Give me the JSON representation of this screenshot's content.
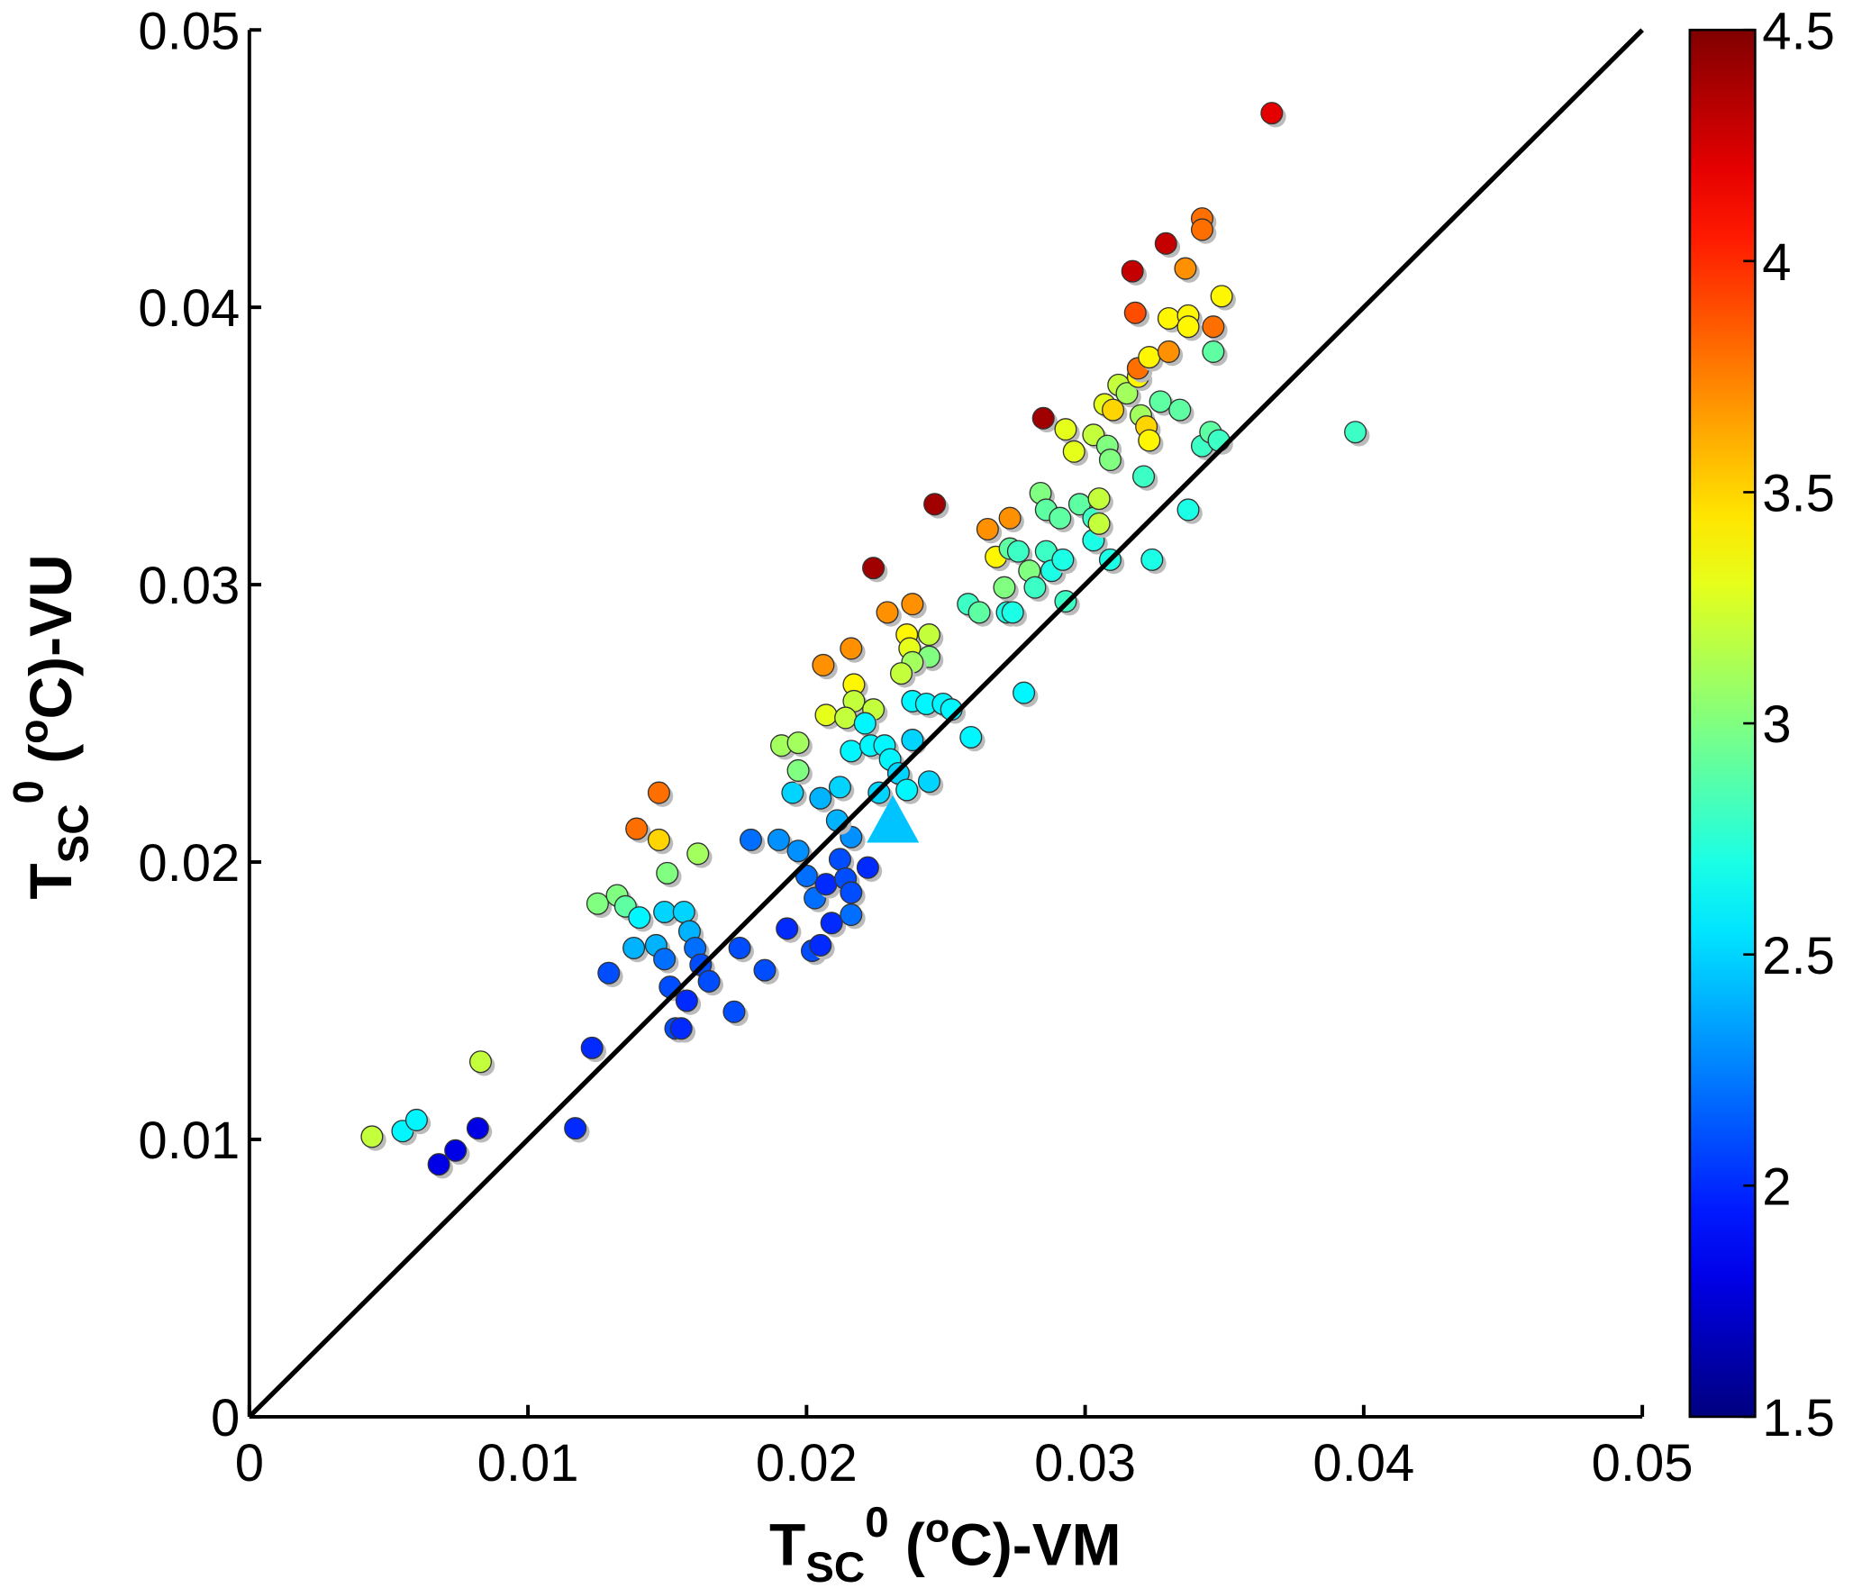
{
  "chart_data": {
    "type": "scatter",
    "xlim": [
      0,
      0.05
    ],
    "ylim": [
      0,
      0.05
    ],
    "xticks": [
      "0",
      "0.01",
      "0.02",
      "0.03",
      "0.04",
      "0.05"
    ],
    "yticks": [
      "0",
      "0.01",
      "0.02",
      "0.03",
      "0.04",
      "0.05"
    ],
    "xtick_values": [
      0,
      0.01,
      0.02,
      0.03,
      0.04,
      0.05
    ],
    "ytick_values": [
      0,
      0.01,
      0.02,
      0.03,
      0.04,
      0.05
    ],
    "xlabel": {
      "base": "T",
      "sub": "SC",
      "sup": "0",
      "mid": " (",
      "sup2": "o",
      "tail": "C)-VM"
    },
    "ylabel": {
      "base": "T",
      "sub": "SC",
      "sup": "0",
      "mid": " (",
      "sup2": "o",
      "tail": "C)-VU"
    },
    "reference_line": {
      "x": [
        0,
        0.05
      ],
      "y": [
        0,
        0.05
      ],
      "color": "#000000"
    },
    "colorbar": {
      "range": [
        1.5,
        4.5
      ],
      "ticks": [
        "1.5",
        "2",
        "2.5",
        "3",
        "3.5",
        "4",
        "4.5"
      ],
      "tick_values": [
        1.5,
        2,
        2.5,
        3,
        3.5,
        4,
        4.5
      ],
      "colormap": "jet",
      "placement": "right"
    },
    "grid": false,
    "points": [
      [
        0.0044,
        0.0101,
        3.2
      ],
      [
        0.0055,
        0.0103,
        2.6
      ],
      [
        0.006,
        0.0107,
        2.6
      ],
      [
        0.0068,
        0.0091,
        1.8
      ],
      [
        0.0074,
        0.0096,
        1.8
      ],
      [
        0.0082,
        0.0104,
        1.8
      ],
      [
        0.0083,
        0.0128,
        3.2
      ],
      [
        0.0117,
        0.0104,
        2.0
      ],
      [
        0.0123,
        0.0133,
        2.0
      ],
      [
        0.0129,
        0.016,
        2.1
      ],
      [
        0.0125,
        0.0185,
        3.0
      ],
      [
        0.0132,
        0.0188,
        3.0
      ],
      [
        0.0135,
        0.0184,
        2.9
      ],
      [
        0.014,
        0.018,
        2.6
      ],
      [
        0.0138,
        0.0169,
        2.4
      ],
      [
        0.0139,
        0.0212,
        3.8
      ],
      [
        0.0147,
        0.0225,
        3.8
      ],
      [
        0.0147,
        0.0208,
        3.5
      ],
      [
        0.015,
        0.0196,
        3.0
      ],
      [
        0.0161,
        0.0203,
        3.1
      ],
      [
        0.0149,
        0.0182,
        2.5
      ],
      [
        0.0156,
        0.0182,
        2.5
      ],
      [
        0.0146,
        0.017,
        2.4
      ],
      [
        0.0149,
        0.0165,
        2.2
      ],
      [
        0.0158,
        0.0175,
        2.4
      ],
      [
        0.016,
        0.0169,
        2.2
      ],
      [
        0.0162,
        0.0163,
        2.1
      ],
      [
        0.0151,
        0.0155,
        2.1
      ],
      [
        0.0157,
        0.015,
        2.0
      ],
      [
        0.0153,
        0.014,
        2.1
      ],
      [
        0.0155,
        0.014,
        2.0
      ],
      [
        0.0165,
        0.0157,
        2.1
      ],
      [
        0.0174,
        0.0146,
        2.1
      ],
      [
        0.0176,
        0.0169,
        2.1
      ],
      [
        0.0185,
        0.0161,
        2.1
      ],
      [
        0.018,
        0.0208,
        2.2
      ],
      [
        0.0193,
        0.0176,
        2.0
      ],
      [
        0.019,
        0.0208,
        2.3
      ],
      [
        0.0197,
        0.0204,
        2.3
      ],
      [
        0.02,
        0.0195,
        2.2
      ],
      [
        0.0202,
        0.0168,
        2.1
      ],
      [
        0.0205,
        0.017,
        2.0
      ],
      [
        0.0203,
        0.0187,
        2.2
      ],
      [
        0.0207,
        0.0192,
        2.0
      ],
      [
        0.0209,
        0.0178,
        2.0
      ],
      [
        0.0212,
        0.0201,
        2.1
      ],
      [
        0.0214,
        0.0194,
        2.1
      ],
      [
        0.0216,
        0.0189,
        2.1
      ],
      [
        0.0216,
        0.0181,
        2.2
      ],
      [
        0.0222,
        0.0198,
        2.0
      ],
      [
        0.0216,
        0.0209,
        2.3
      ],
      [
        0.0211,
        0.0215,
        2.4
      ],
      [
        0.0205,
        0.0223,
        2.4
      ],
      [
        0.0212,
        0.0227,
        2.5
      ],
      [
        0.0195,
        0.0225,
        2.5
      ],
      [
        0.0197,
        0.0233,
        3.0
      ],
      [
        0.0191,
        0.0242,
        3.1
      ],
      [
        0.0197,
        0.0243,
        3.1
      ],
      [
        0.0207,
        0.0253,
        3.3
      ],
      [
        0.0206,
        0.0271,
        3.7
      ],
      [
        0.0216,
        0.0277,
        3.7
      ],
      [
        0.0217,
        0.0264,
        3.4
      ],
      [
        0.0217,
        0.0258,
        3.2
      ],
      [
        0.0214,
        0.0252,
        3.2
      ],
      [
        0.0224,
        0.0255,
        3.2
      ],
      [
        0.0216,
        0.024,
        2.6
      ],
      [
        0.0221,
        0.025,
        2.6
      ],
      [
        0.0223,
        0.0242,
        2.6
      ],
      [
        0.0228,
        0.0242,
        2.6
      ],
      [
        0.023,
        0.0237,
        2.6
      ],
      [
        0.0233,
        0.0232,
        2.5
      ],
      [
        0.0238,
        0.0244,
        2.5
      ],
      [
        0.0236,
        0.0226,
        2.6
      ],
      [
        0.0244,
        0.0229,
        2.5
      ],
      [
        0.0226,
        0.0225,
        2.5
      ],
      [
        0.0224,
        0.0306,
        4.4
      ],
      [
        0.0229,
        0.029,
        3.7
      ],
      [
        0.0238,
        0.0293,
        3.7
      ],
      [
        0.0236,
        0.0282,
        3.4
      ],
      [
        0.0237,
        0.0277,
        3.3
      ],
      [
        0.0244,
        0.0282,
        3.2
      ],
      [
        0.0244,
        0.0274,
        3.0
      ],
      [
        0.0238,
        0.0272,
        3.1
      ],
      [
        0.0234,
        0.0268,
        3.2
      ],
      [
        0.0238,
        0.0258,
        2.6
      ],
      [
        0.0243,
        0.0257,
        2.6
      ],
      [
        0.0249,
        0.0257,
        2.6
      ],
      [
        0.0252,
        0.0255,
        2.6
      ],
      [
        0.0259,
        0.0245,
        2.6
      ],
      [
        0.0278,
        0.0261,
        2.6
      ],
      [
        0.0246,
        0.0329,
        4.4
      ],
      [
        0.0258,
        0.0293,
        2.8
      ],
      [
        0.0262,
        0.029,
        2.9
      ],
      [
        0.0265,
        0.032,
        3.7
      ],
      [
        0.0273,
        0.0324,
        3.7
      ],
      [
        0.0268,
        0.031,
        3.4
      ],
      [
        0.0271,
        0.0299,
        3.0
      ],
      [
        0.0272,
        0.029,
        2.7
      ],
      [
        0.0274,
        0.029,
        2.7
      ],
      [
        0.0273,
        0.0313,
        2.9
      ],
      [
        0.0276,
        0.0312,
        2.8
      ],
      [
        0.028,
        0.0305,
        3.0
      ],
      [
        0.0282,
        0.0299,
        2.8
      ],
      [
        0.0286,
        0.0312,
        2.8
      ],
      [
        0.0288,
        0.0305,
        2.7
      ],
      [
        0.0284,
        0.0333,
        3.0
      ],
      [
        0.0286,
        0.0327,
        2.9
      ],
      [
        0.0291,
        0.0324,
        2.9
      ],
      [
        0.0293,
        0.0294,
        2.8
      ],
      [
        0.0292,
        0.0309,
        2.7
      ],
      [
        0.0285,
        0.036,
        4.4
      ],
      [
        0.0293,
        0.0356,
        3.3
      ],
      [
        0.0296,
        0.0348,
        3.3
      ],
      [
        0.0298,
        0.0329,
        2.9
      ],
      [
        0.0303,
        0.0324,
        2.8
      ],
      [
        0.0303,
        0.0316,
        2.7
      ],
      [
        0.0305,
        0.0331,
        3.2
      ],
      [
        0.0305,
        0.0322,
        3.2
      ],
      [
        0.0309,
        0.0309,
        2.7
      ],
      [
        0.0303,
        0.0354,
        3.2
      ],
      [
        0.0307,
        0.0365,
        3.3
      ],
      [
        0.031,
        0.0363,
        3.5
      ],
      [
        0.0308,
        0.035,
        3.0
      ],
      [
        0.0309,
        0.0345,
        3.0
      ],
      [
        0.0312,
        0.0372,
        3.2
      ],
      [
        0.0315,
        0.0369,
        3.1
      ],
      [
        0.0319,
        0.0375,
        3.4
      ],
      [
        0.032,
        0.0361,
        3.1
      ],
      [
        0.0321,
        0.0339,
        2.8
      ],
      [
        0.0322,
        0.0357,
        3.5
      ],
      [
        0.0323,
        0.0352,
        3.4
      ],
      [
        0.0319,
        0.0378,
        3.8
      ],
      [
        0.0323,
        0.0382,
        3.4
      ],
      [
        0.0324,
        0.0309,
        2.7
      ],
      [
        0.0327,
        0.0366,
        2.9
      ],
      [
        0.033,
        0.0384,
        3.7
      ],
      [
        0.0334,
        0.0363,
        2.9
      ],
      [
        0.0337,
        0.0327,
        2.7
      ],
      [
        0.0342,
        0.035,
        2.8
      ],
      [
        0.0345,
        0.0355,
        2.9
      ],
      [
        0.0346,
        0.0384,
        2.9
      ],
      [
        0.0348,
        0.0352,
        2.8
      ],
      [
        0.0317,
        0.0413,
        4.3
      ],
      [
        0.0329,
        0.0423,
        4.3
      ],
      [
        0.0318,
        0.0398,
        3.9
      ],
      [
        0.033,
        0.0396,
        3.4
      ],
      [
        0.0336,
        0.0414,
        3.7
      ],
      [
        0.0337,
        0.0397,
        3.4
      ],
      [
        0.0337,
        0.0393,
        3.4
      ],
      [
        0.0342,
        0.0432,
        3.8
      ],
      [
        0.0342,
        0.0428,
        3.8
      ],
      [
        0.0346,
        0.0393,
        3.8
      ],
      [
        0.0349,
        0.0404,
        3.4
      ],
      [
        0.0367,
        0.047,
        4.2
      ],
      [
        0.0397,
        0.0355,
        2.8
      ]
    ],
    "highlight_point": {
      "marker": "triangle",
      "x": 0.0231,
      "y": 0.0213,
      "value": 2.45
    }
  }
}
